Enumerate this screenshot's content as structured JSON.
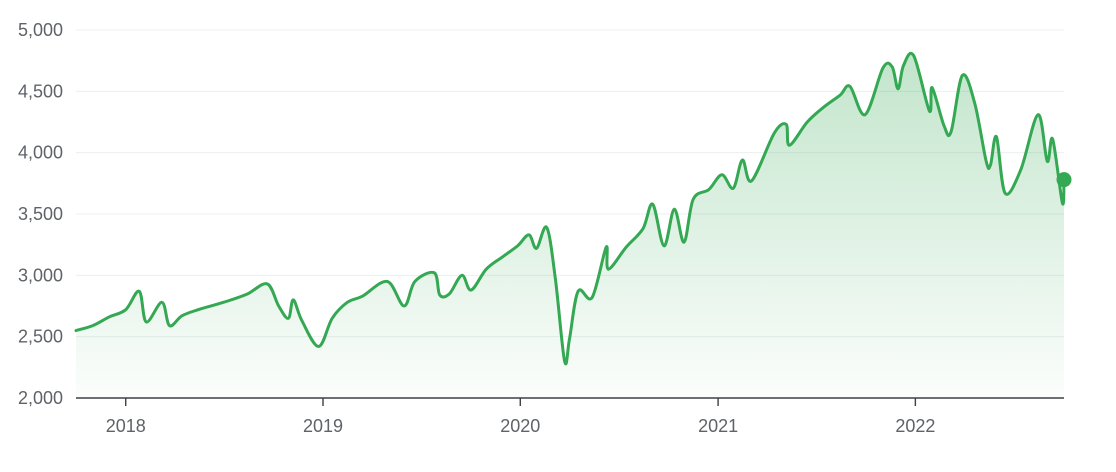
{
  "chart_data": {
    "type": "area",
    "y_ticks": [
      "5,000",
      "4,500",
      "4,000",
      "3,500",
      "3,000",
      "2,500",
      "2,000"
    ],
    "x_ticks": [
      "2018",
      "2019",
      "2020",
      "2021",
      "2022"
    ],
    "ylim": [
      2000,
      5000
    ],
    "xlim": [
      "2017-10-01",
      "2022-10-03"
    ],
    "grid": true,
    "series": [
      {
        "color": "#34a853",
        "points": [
          [
            "2017-10-01",
            2550
          ],
          [
            "2017-11-01",
            2590
          ],
          [
            "2017-12-01",
            2660
          ],
          [
            "2018-01-01",
            2720
          ],
          [
            "2018-01-26",
            2870
          ],
          [
            "2018-02-08",
            2620
          ],
          [
            "2018-03-09",
            2780
          ],
          [
            "2018-03-23",
            2590
          ],
          [
            "2018-04-15",
            2670
          ],
          [
            "2018-05-15",
            2720
          ],
          [
            "2018-06-15",
            2760
          ],
          [
            "2018-07-15",
            2800
          ],
          [
            "2018-08-15",
            2850
          ],
          [
            "2018-09-20",
            2930
          ],
          [
            "2018-10-11",
            2750
          ],
          [
            "2018-10-29",
            2650
          ],
          [
            "2018-11-07",
            2800
          ],
          [
            "2018-11-23",
            2630
          ],
          [
            "2018-12-24",
            2420
          ],
          [
            "2019-01-18",
            2650
          ],
          [
            "2019-02-15",
            2780
          ],
          [
            "2019-03-15",
            2830
          ],
          [
            "2019-04-30",
            2950
          ],
          [
            "2019-05-31",
            2750
          ],
          [
            "2019-06-20",
            2950
          ],
          [
            "2019-07-26",
            3020
          ],
          [
            "2019-08-05",
            2840
          ],
          [
            "2019-08-23",
            2850
          ],
          [
            "2019-09-15",
            3000
          ],
          [
            "2019-10-02",
            2880
          ],
          [
            "2019-10-30",
            3050
          ],
          [
            "2019-11-29",
            3150
          ],
          [
            "2019-12-27",
            3240
          ],
          [
            "2020-01-17",
            3330
          ],
          [
            "2020-01-31",
            3220
          ],
          [
            "2020-02-19",
            3390
          ],
          [
            "2020-03-06",
            2970
          ],
          [
            "2020-03-23",
            2300
          ],
          [
            "2020-04-01",
            2480
          ],
          [
            "2020-04-17",
            2870
          ],
          [
            "2020-05-13",
            2820
          ],
          [
            "2020-06-08",
            3230
          ],
          [
            "2020-06-12",
            3050
          ],
          [
            "2020-07-15",
            3230
          ],
          [
            "2020-08-15",
            3380
          ],
          [
            "2020-09-02",
            3580
          ],
          [
            "2020-09-23",
            3240
          ],
          [
            "2020-10-12",
            3540
          ],
          [
            "2020-10-30",
            3270
          ],
          [
            "2020-11-16",
            3620
          ],
          [
            "2020-12-15",
            3700
          ],
          [
            "2021-01-08",
            3820
          ],
          [
            "2021-01-29",
            3710
          ],
          [
            "2021-02-15",
            3940
          ],
          [
            "2021-03-04",
            3770
          ],
          [
            "2021-04-15",
            4160
          ],
          [
            "2021-05-07",
            4230
          ],
          [
            "2021-05-13",
            4060
          ],
          [
            "2021-06-15",
            4250
          ],
          [
            "2021-07-15",
            4370
          ],
          [
            "2021-08-15",
            4470
          ],
          [
            "2021-09-02",
            4540
          ],
          [
            "2021-09-30",
            4310
          ],
          [
            "2021-11-02",
            4690
          ],
          [
            "2021-11-19",
            4700
          ],
          [
            "2021-11-30",
            4520
          ],
          [
            "2021-12-10",
            4710
          ],
          [
            "2021-12-29",
            4790
          ],
          [
            "2022-01-27",
            4340
          ],
          [
            "2022-02-01",
            4530
          ],
          [
            "2022-02-23",
            4220
          ],
          [
            "2022-03-08",
            4170
          ],
          [
            "2022-03-29",
            4630
          ],
          [
            "2022-04-21",
            4400
          ],
          [
            "2022-05-12",
            3930
          ],
          [
            "2022-05-20",
            3900
          ],
          [
            "2022-05-31",
            4130
          ],
          [
            "2022-06-16",
            3670
          ],
          [
            "2022-07-15",
            3860
          ],
          [
            "2022-08-16",
            4310
          ],
          [
            "2022-09-02",
            3930
          ],
          [
            "2022-09-12",
            4110
          ],
          [
            "2022-09-30",
            3590
          ],
          [
            "2022-10-03",
            3780
          ]
        ],
        "last_value": 3780
      }
    ]
  }
}
